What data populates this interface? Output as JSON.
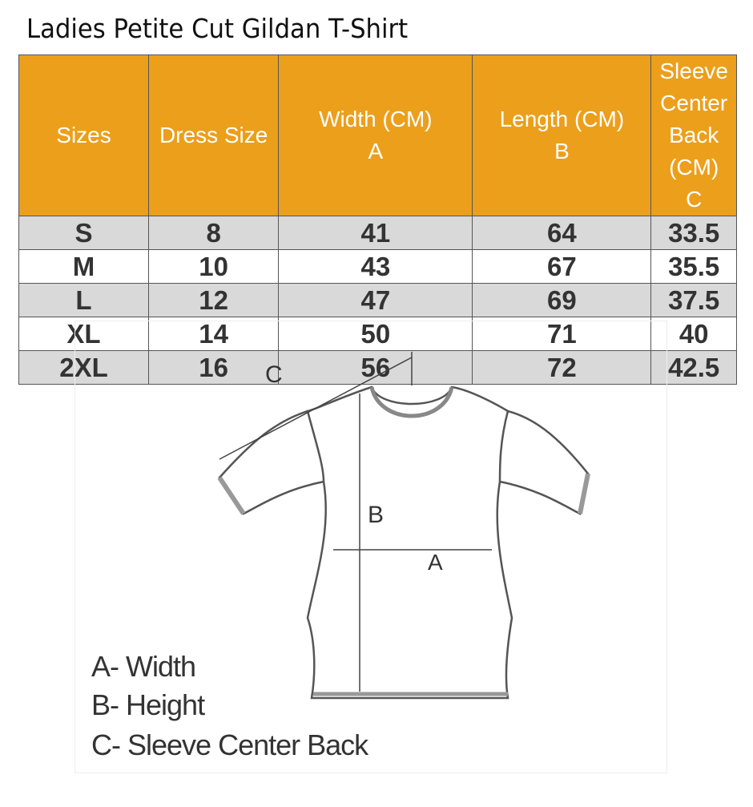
{
  "title": "Ladies Petite Cut Gildan T-Shirt",
  "table": {
    "headers": [
      "Sizes",
      "Dress Size",
      "Width (CM) A",
      "Length (CM) B",
      "Sleeve Center Back (CM) C"
    ],
    "rows": [
      [
        "S",
        "8",
        "41",
        "64",
        "33.5"
      ],
      [
        "M",
        "10",
        "43",
        "67",
        "35.5"
      ],
      [
        "L",
        "12",
        "47",
        "69",
        "37.5"
      ],
      [
        "XL",
        "14",
        "50",
        "71",
        "40"
      ],
      [
        "2XL",
        "16",
        "56",
        "72",
        "42.5"
      ]
    ]
  },
  "colors": {
    "header": "#EC9F1B",
    "stripe": "#d9d9d9"
  },
  "diagram": {
    "label_a": "A",
    "label_b": "B",
    "label_c": "C",
    "legend": [
      "A- Width",
      "B- Height",
      "C- Sleeve Center Back"
    ]
  }
}
